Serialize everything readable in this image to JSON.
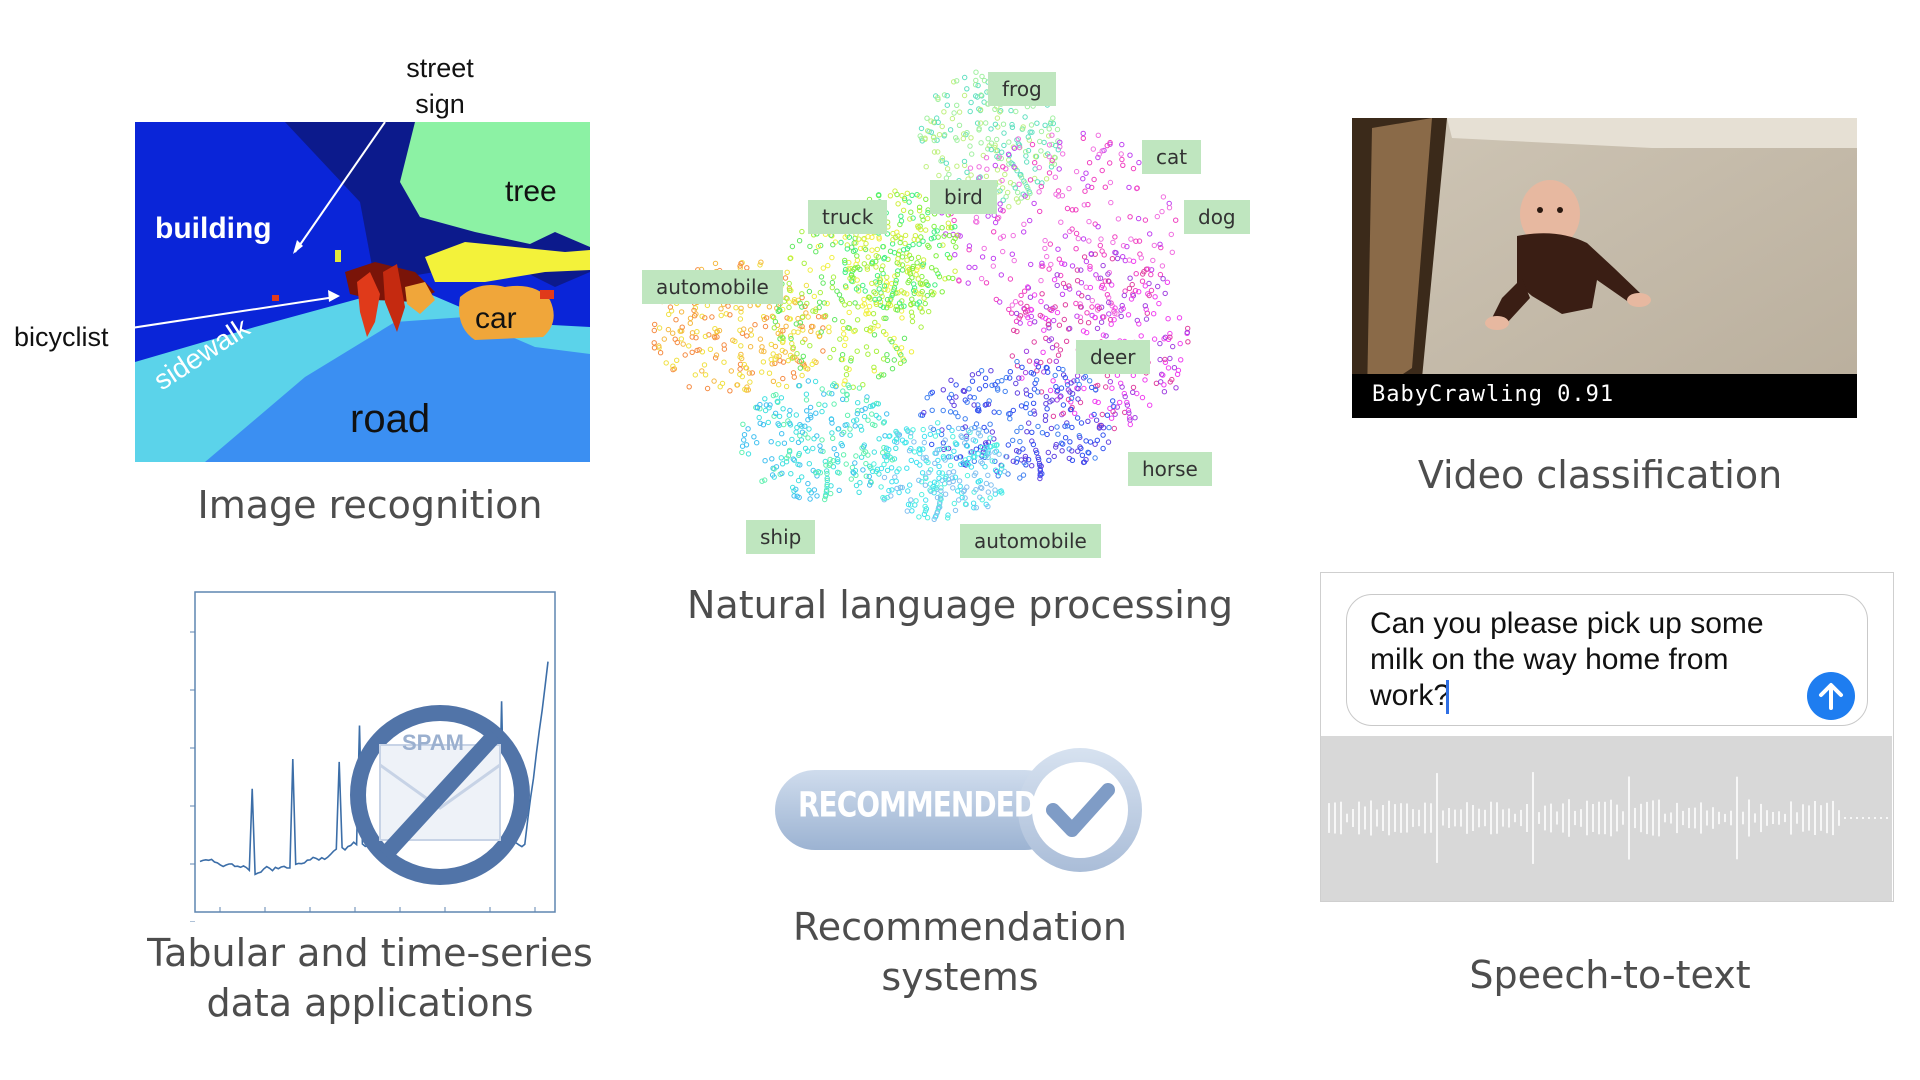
{
  "image_recognition": {
    "caption": "Image recognition",
    "labels": {
      "street_sign": "street\nsign",
      "building": "building",
      "tree": "tree",
      "bicyclist": "bicyclist",
      "car": "car",
      "sidewalk": "sidewalk",
      "road": "road"
    },
    "colors": {
      "building": "#0a25d8",
      "tree": "#8cf2a4",
      "sidewalk": "#5bd3ea",
      "road": "#3b8ff2",
      "car": "#f0a63a",
      "sky": "#0c1a8c"
    }
  },
  "nlp": {
    "caption": "Natural language processing",
    "tags": [
      "frog",
      "cat",
      "truck",
      "bird",
      "dog",
      "automobile",
      "deer",
      "horse",
      "ship",
      "automobile"
    ]
  },
  "video": {
    "caption": "Video classification",
    "overlay": "BabyCrawling 0.91"
  },
  "tabular": {
    "caption": "Tabular and time-series\ndata applications",
    "badge": "SPAM"
  },
  "recommendation": {
    "caption": "Recommendation\nsystems",
    "badge": "RECOMMENDED"
  },
  "speech": {
    "caption": "Speech-to-text",
    "message": "Can you please pick up some\nmilk on the way home from\nwork?"
  }
}
